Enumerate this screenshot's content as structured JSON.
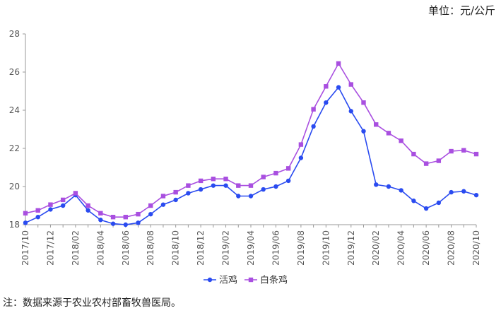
{
  "unit_label": "单位：元/公斤",
  "source_note": "注：数据来源于农业农村部畜牧兽医局。",
  "chart_data": {
    "type": "line",
    "title": "",
    "xlabel": "",
    "ylabel": "",
    "ylim": [
      18,
      28
    ],
    "yticks": [
      "18",
      "20",
      "22",
      "24",
      "26",
      "28"
    ],
    "grid": false,
    "legend_position": "bottom",
    "x": [
      "2017/10",
      "2017/11",
      "2017/12",
      "2018/01",
      "2018/02",
      "2018/03",
      "2018/04",
      "2018/05",
      "2018/06",
      "2018/07",
      "2018/08",
      "2018/09",
      "2018/10",
      "2018/11",
      "2018/12",
      "2019/01",
      "2019/02",
      "2019/03",
      "2019/04",
      "2019/05",
      "2019/06",
      "2019/07",
      "2019/08",
      "2019/09",
      "2019/10",
      "2019/11",
      "2019/12",
      "2020/01",
      "2020/02",
      "2020/03",
      "2020/04",
      "2020/05",
      "2020/06",
      "2020/07",
      "2020/08",
      "2020/09",
      "2020/10"
    ],
    "x_tick_labels": [
      "2017/10",
      "2017/12",
      "2018/02",
      "2018/04",
      "2018/06",
      "2018/08",
      "2018/10",
      "2018/12",
      "2019/02",
      "2019/04",
      "2019/06",
      "2019/08",
      "2019/10",
      "2019/12",
      "2020/02",
      "2020/04",
      "2020/06",
      "2020/08",
      "2020/10"
    ],
    "series": [
      {
        "name": "活鸡",
        "color": "#2a4bf0",
        "marker": "circle",
        "values": [
          18.1,
          18.4,
          18.8,
          19.0,
          19.55,
          18.75,
          18.25,
          18.05,
          18.0,
          18.1,
          18.55,
          19.05,
          19.3,
          19.65,
          19.85,
          20.05,
          20.05,
          19.5,
          19.5,
          19.85,
          20.0,
          20.3,
          21.5,
          23.15,
          24.4,
          25.2,
          23.95,
          22.9,
          20.1,
          20.0,
          19.8,
          19.25,
          18.85,
          19.15,
          19.7,
          19.75,
          19.55
        ]
      },
      {
        "name": "白条鸡",
        "color": "#a94fe0",
        "marker": "square",
        "values": [
          18.6,
          18.75,
          19.05,
          19.3,
          19.65,
          19.0,
          18.6,
          18.4,
          18.4,
          18.55,
          19.0,
          19.5,
          19.7,
          20.05,
          20.3,
          20.4,
          20.4,
          20.05,
          20.05,
          20.5,
          20.7,
          20.95,
          22.2,
          24.05,
          25.25,
          26.45,
          25.35,
          24.4,
          23.25,
          22.8,
          22.4,
          21.7,
          21.2,
          21.35,
          21.85,
          21.9,
          21.7
        ]
      }
    ]
  }
}
